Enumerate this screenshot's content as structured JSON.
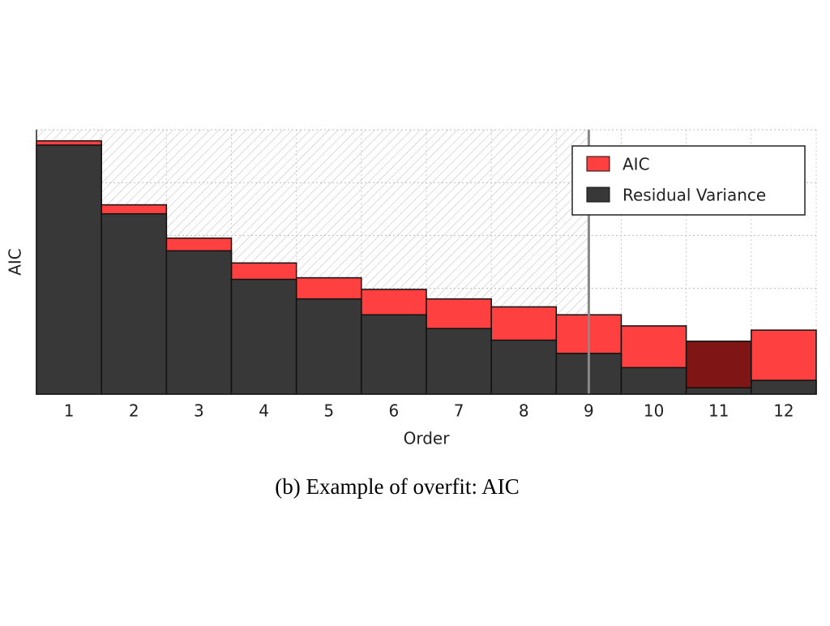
{
  "chart_data": {
    "type": "bar",
    "caption": "(b) Example of overfit: AIC",
    "x_label": "Order",
    "y_label": "AIC",
    "categories": [
      "1",
      "2",
      "3",
      "4",
      "5",
      "6",
      "7",
      "8",
      "9",
      "10",
      "11",
      "12"
    ],
    "series": [
      {
        "name": "AIC",
        "color": "#ff4040",
        "point_colors": [
          "#ff4040",
          "#ff4040",
          "#ff4040",
          "#ff4040",
          "#ff4040",
          "#ff4040",
          "#ff4040",
          "#ff4040",
          "#ff4040",
          "#ff4040",
          "#7f1515",
          "#ff4040"
        ],
        "values": [
          4.79,
          3.58,
          2.95,
          2.48,
          2.2,
          1.98,
          1.8,
          1.65,
          1.5,
          1.29,
          1.0,
          1.21
        ]
      },
      {
        "name": "Residual Variance",
        "color": "#383838",
        "values": [
          4.71,
          3.41,
          2.71,
          2.17,
          1.8,
          1.5,
          1.24,
          1.02,
          0.77,
          0.5,
          0.12,
          0.26
        ]
      }
    ],
    "threshold": 9,
    "ylim": [
      0,
      5
    ],
    "legend": "upper right"
  }
}
